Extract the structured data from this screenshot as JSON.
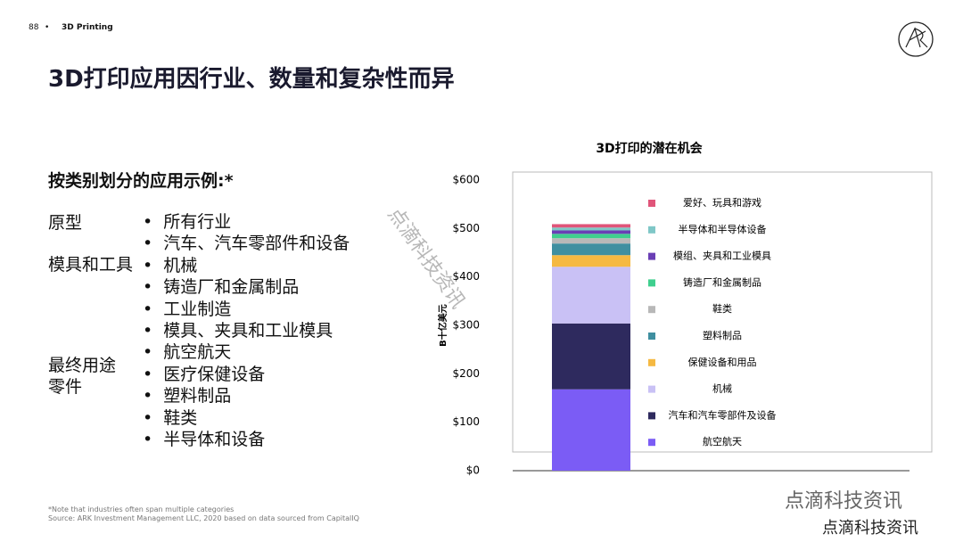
{
  "header": {
    "page_number": "88",
    "section": "3D Printing"
  },
  "title": "3D打印应用因行业、数量和复杂性而异",
  "subtitle": "按类别划分的应用示例:*",
  "group_labels": [
    "原型",
    "模具和工具",
    "最终用途零件"
  ],
  "items": [
    "所有行业",
    "汽车、汽车零部件和设备",
    "机械",
    "铸造厂和金属制品",
    "工业制造",
    "模具、夹具和工业模具",
    "航空航天",
    "医疗保健设备",
    "塑料制品",
    "鞋类",
    "半导体和设备"
  ],
  "footnotes": [
    "*Note that industries often span multiple categories",
    "Source: ARK Investment Management LLC, 2020 based on data sourced from CapitalIQ"
  ],
  "watermarks": [
    "点滴科技资讯",
    "点滴科技资讯",
    "点滴科技资讯"
  ],
  "chart_data": {
    "type": "bar",
    "stacked": true,
    "title": "3D打印的潜在机会",
    "y_label": "B十亿美元",
    "categories": [
      null
    ],
    "ylim": [
      0,
      600
    ],
    "yticks": [
      {
        "value": 0,
        "label": "$0"
      },
      {
        "value": 100,
        "label": "$100"
      },
      {
        "value": 200,
        "label": "$200"
      },
      {
        "value": 300,
        "label": "$300"
      },
      {
        "value": 400,
        "label": "$400"
      },
      {
        "value": 500,
        "label": "$500"
      },
      {
        "value": 600,
        "label": "$600"
      }
    ],
    "series": [
      {
        "name": "航空航天",
        "color": "#7b5cf5",
        "values": [
          168
        ]
      },
      {
        "name": "汽车和汽车零部件及设备",
        "color": "#2e2a5e",
        "values": [
          136
        ]
      },
      {
        "name": "机械",
        "color": "#c9c1f5",
        "values": [
          117
        ]
      },
      {
        "name": "保健设备和用品",
        "color": "#f5b942",
        "values": [
          24
        ]
      },
      {
        "name": "塑料制品",
        "color": "#3f8fa0",
        "values": [
          24
        ]
      },
      {
        "name": "鞋类",
        "color": "#b8b8b8",
        "values": [
          11
        ]
      },
      {
        "name": "铸造厂和金属制品",
        "color": "#3fcf8e",
        "values": [
          9
        ]
      },
      {
        "name": "模组、夹具和工业模具",
        "color": "#6a3fb5",
        "values": [
          7
        ]
      },
      {
        "name": "半导体和半导体设备",
        "color": "#7fc7c7",
        "values": [
          6
        ]
      },
      {
        "name": "爱好、玩具和游戏",
        "color": "#e0557a",
        "values": [
          7
        ]
      }
    ]
  }
}
